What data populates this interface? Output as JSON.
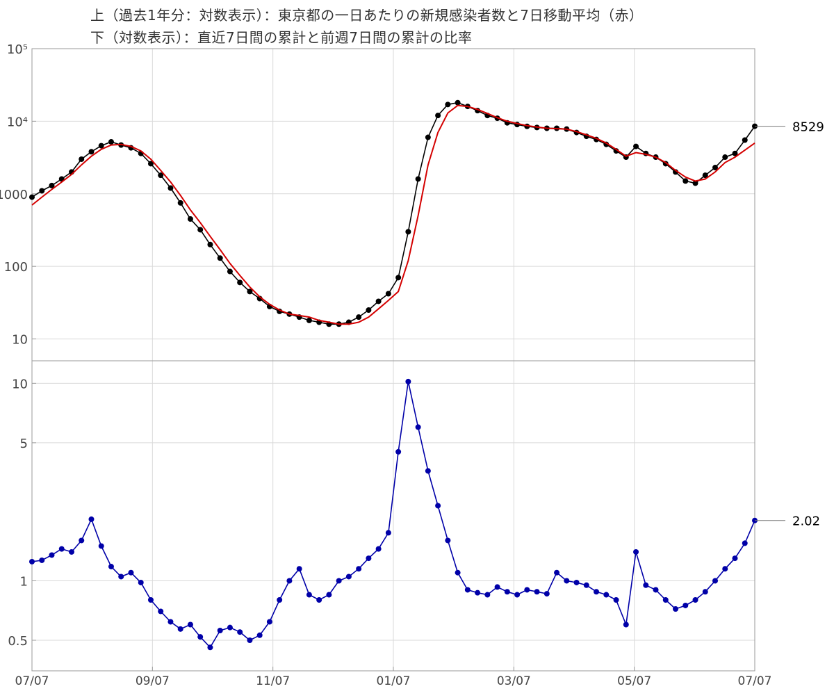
{
  "titles": {
    "line1": "上（過去1年分：対数表示）：東京都の一日あたりの新規感染者数と7日移動平均（赤）",
    "line2": "下（対数表示）：直近7日間の累計と前週7日間の累計の比率"
  },
  "colors": {
    "cases": "#000000",
    "moving_average": "#d40000",
    "ratio": "#0000a8",
    "grid": "#d9d9d9",
    "frame": "#9a9a9a"
  },
  "chart_data": [
    {
      "type": "line",
      "scale": "log",
      "x": [
        "07/07",
        "07/12",
        "07/17",
        "07/22",
        "07/27",
        "08/01",
        "08/06",
        "08/11",
        "08/16",
        "08/21",
        "08/26",
        "08/31",
        "09/05",
        "09/10",
        "09/15",
        "09/20",
        "09/25",
        "09/30",
        "10/05",
        "10/10",
        "10/15",
        "10/20",
        "10/25",
        "10/30",
        "11/04",
        "11/09",
        "11/14",
        "11/19",
        "11/24",
        "11/29",
        "12/04",
        "12/09",
        "12/14",
        "12/19",
        "12/24",
        "12/29",
        "01/03",
        "01/08",
        "01/13",
        "01/18",
        "01/23",
        "01/28",
        "02/02",
        "02/07",
        "02/12",
        "02/17",
        "02/22",
        "02/27",
        "03/04",
        "03/09",
        "03/14",
        "03/19",
        "03/24",
        "03/29",
        "04/03",
        "04/08",
        "04/13",
        "04/18",
        "04/23",
        "04/28",
        "05/03",
        "05/08",
        "05/13",
        "05/18",
        "05/23",
        "05/28",
        "06/02",
        "06/07",
        "06/12",
        "06/17",
        "06/22",
        "06/27",
        "07/02",
        "07/07"
      ],
      "series": [
        {
          "values": [
            900,
            1100,
            1300,
            1600,
            2000,
            3000,
            3800,
            4600,
            5200,
            4700,
            4300,
            3600,
            2600,
            1800,
            1200,
            750,
            450,
            320,
            200,
            130,
            85,
            60,
            45,
            36,
            28,
            24,
            22,
            20,
            18,
            17,
            16,
            16,
            17,
            20,
            25,
            33,
            42,
            70,
            300,
            1600,
            6000,
            12000,
            17000,
            18000,
            16000,
            14000,
            12000,
            11000,
            9500,
            9000,
            8500,
            8200,
            8000,
            8000,
            7800,
            7000,
            6200,
            5600,
            4800,
            3900,
            3200,
            4500,
            3600,
            3200,
            2600,
            2000,
            1500,
            1400,
            1800,
            2300,
            3200,
            3600,
            5500,
            8529
          ]
        },
        {
          "name": "7日移動平均（赤）",
          "values": [
            700,
            900,
            1150,
            1450,
            1850,
            2500,
            3300,
            4100,
            4700,
            4800,
            4500,
            3900,
            3000,
            2100,
            1450,
            950,
            600,
            400,
            260,
            170,
            110,
            75,
            52,
            38,
            30,
            25,
            22,
            21,
            20,
            18,
            17,
            16,
            16,
            17,
            20,
            26,
            34,
            45,
            120,
            500,
            2500,
            7000,
            13000,
            16500,
            16000,
            14500,
            12800,
            11200,
            10000,
            9300,
            8700,
            8300,
            8000,
            7900,
            7800,
            7200,
            6500,
            5800,
            5000,
            4100,
            3300,
            3700,
            3500,
            3200,
            2700,
            2100,
            1700,
            1500,
            1600,
            2000,
            2700,
            3200,
            4000,
            5000
          ]
        }
      ],
      "ylim": [
        5,
        100000
      ],
      "yticks": [
        "10",
        "100",
        "1000",
        "10⁴",
        "10⁵"
      ],
      "end_label": "8529"
    },
    {
      "type": "line",
      "scale": "log",
      "x": [
        "07/07",
        "07/12",
        "07/17",
        "07/22",
        "07/27",
        "08/01",
        "08/06",
        "08/11",
        "08/16",
        "08/21",
        "08/26",
        "08/31",
        "09/05",
        "09/10",
        "09/15",
        "09/20",
        "09/25",
        "09/30",
        "10/05",
        "10/10",
        "10/15",
        "10/20",
        "10/25",
        "10/30",
        "11/04",
        "11/09",
        "11/14",
        "11/19",
        "11/24",
        "11/29",
        "12/04",
        "12/09",
        "12/14",
        "12/19",
        "12/24",
        "12/29",
        "01/03",
        "01/08",
        "01/13",
        "01/18",
        "01/23",
        "01/28",
        "02/02",
        "02/07",
        "02/12",
        "02/17",
        "02/22",
        "02/27",
        "03/04",
        "03/09",
        "03/14",
        "03/19",
        "03/24",
        "03/29",
        "04/03",
        "04/08",
        "04/13",
        "04/18",
        "04/23",
        "04/28",
        "05/03",
        "05/08",
        "05/13",
        "05/18",
        "05/23",
        "05/28",
        "06/02",
        "06/07",
        "06/12",
        "06/17",
        "06/22",
        "06/27",
        "07/02",
        "07/07"
      ],
      "series": [
        {
          "values": [
            1.25,
            1.27,
            1.35,
            1.45,
            1.4,
            1.6,
            2.05,
            1.5,
            1.18,
            1.05,
            1.1,
            0.98,
            0.8,
            0.7,
            0.62,
            0.57,
            0.6,
            0.52,
            0.46,
            0.56,
            0.58,
            0.55,
            0.5,
            0.53,
            0.62,
            0.8,
            1.0,
            1.15,
            0.85,
            0.8,
            0.85,
            1.0,
            1.05,
            1.15,
            1.3,
            1.45,
            1.75,
            4.5,
            10.2,
            6.0,
            3.6,
            2.4,
            1.6,
            1.1,
            0.9,
            0.87,
            0.85,
            0.93,
            0.88,
            0.85,
            0.9,
            0.88,
            0.86,
            1.1,
            1.0,
            0.98,
            0.95,
            0.88,
            0.85,
            0.8,
            0.6,
            1.4,
            0.95,
            0.9,
            0.8,
            0.72,
            0.75,
            0.8,
            0.88,
            1.0,
            1.15,
            1.3,
            1.55,
            2.02
          ]
        }
      ],
      "ylim": [
        0.35,
        13
      ],
      "yticks": [
        "0.5",
        "1",
        "5",
        "10"
      ],
      "end_label": "2.02"
    }
  ],
  "xaxis": {
    "ticks": [
      "07/07",
      "09/07",
      "11/07",
      "01/07",
      "03/07",
      "05/07",
      "07/07"
    ]
  }
}
